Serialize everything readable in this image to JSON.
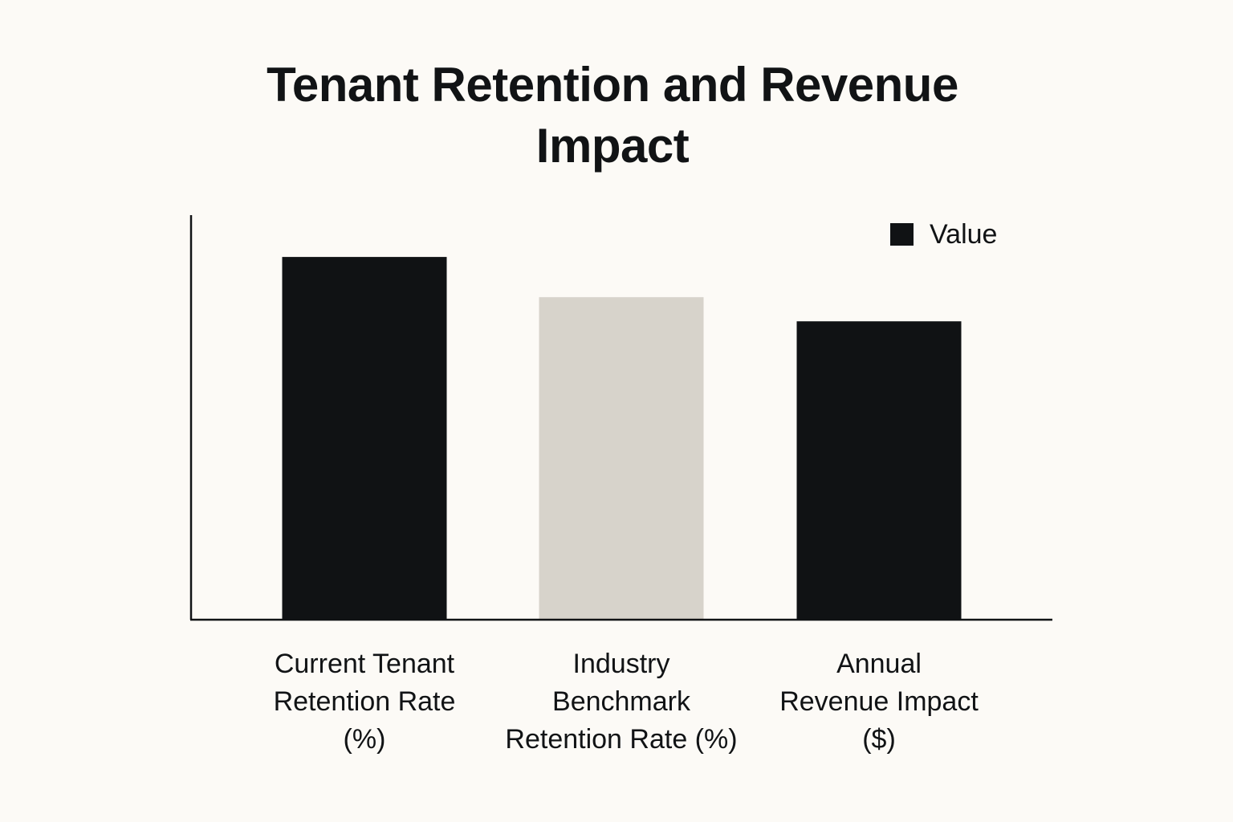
{
  "chart_data": {
    "type": "bar",
    "title": "Tenant Retention and Revenue Impact",
    "categories": [
      [
        "Current Tenant",
        "Retention Rate",
        "(%)"
      ],
      [
        "Industry",
        "Benchmark",
        "Retention Rate (%)"
      ],
      [
        "Annual",
        "Revenue Impact",
        "($)"
      ]
    ],
    "series": [
      {
        "name": "Value",
        "values": [
          90,
          80,
          74
        ],
        "colors": [
          "#101214",
          "#d7d3cb",
          "#101214"
        ]
      }
    ],
    "legend": {
      "position": "top-right",
      "label": "Value",
      "color": "#101214"
    },
    "xlabel": "",
    "ylabel": "",
    "ylim": [
      0,
      100
    ],
    "grid": false
  }
}
